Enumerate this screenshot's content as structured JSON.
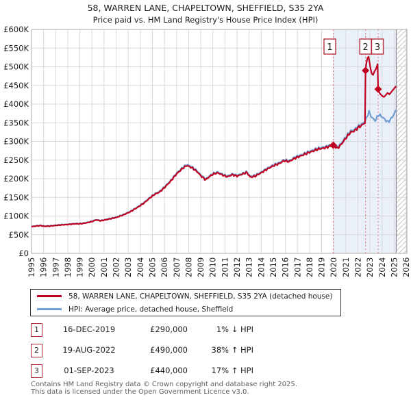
{
  "page": {
    "title_line1": "58, WARREN LANE, CHAPELTOWN, SHEFFIELD, S35 2YA",
    "title_line2": "Price paid vs. HM Land Registry's House Price Index (HPI)"
  },
  "chart_data": {
    "type": "line",
    "title": "58, WARREN LANE, CHAPELTOWN, SHEFFIELD, S35 2YA",
    "subtitle": "Price paid vs. HM Land Registry's House Price Index (HPI)",
    "x_min": 1995,
    "x_max": 2026.05,
    "y_min": 0,
    "y_max": 600,
    "grid": true,
    "x_tick_years": [
      1995,
      1996,
      1997,
      1998,
      1999,
      2000,
      2001,
      2002,
      2003,
      2004,
      2005,
      2006,
      2007,
      2008,
      2009,
      2010,
      2011,
      2012,
      2013,
      2014,
      2015,
      2016,
      2017,
      2018,
      2019,
      2020,
      2021,
      2022,
      2023,
      2024,
      2025,
      2026
    ],
    "y_tick_labels": [
      "£0",
      "£50K",
      "£100K",
      "£150K",
      "£200K",
      "£250K",
      "£300K",
      "£350K",
      "£400K",
      "£450K",
      "£500K",
      "£550K",
      "£600K"
    ],
    "y_tick_values": [
      0,
      50,
      100,
      150,
      200,
      250,
      300,
      350,
      400,
      450,
      500,
      550,
      600
    ],
    "colors": {
      "price_paid": "#c00020",
      "hpi": "#6d9dd1",
      "sale_dashed": "#e87272",
      "shade": "#eaf0fa",
      "grid": "#d8d8d8",
      "border": "#aaaaaa",
      "hatch": "#c4c4c4"
    },
    "shade_from_year": 2019.958,
    "data_end_year": 2025.17,
    "hatch_to_year": 2026.05,
    "hpi_series": {
      "name": "HPI: Average price, detached house, Sheffield",
      "unit": "GBP thousands",
      "anchors": [
        [
          1995.0,
          72
        ],
        [
          1995.4,
          74
        ],
        [
          1995.75,
          75
        ],
        [
          1996.1,
          73
        ],
        [
          1996.6,
          74
        ],
        [
          1997.0,
          75.5
        ],
        [
          1997.5,
          77
        ],
        [
          1998.0,
          78
        ],
        [
          1998.6,
          80
        ],
        [
          1999.1,
          80
        ],
        [
          1999.6,
          83
        ],
        [
          2000.0,
          86
        ],
        [
          2000.35,
          90.5
        ],
        [
          2000.7,
          88
        ],
        [
          2001.1,
          90.5
        ],
        [
          2001.5,
          93.5
        ],
        [
          2002.0,
          97
        ],
        [
          2002.6,
          104
        ],
        [
          2003.2,
          113
        ],
        [
          2003.8,
          125
        ],
        [
          2004.3,
          136
        ],
        [
          2004.8,
          150
        ],
        [
          2005.2,
          160
        ],
        [
          2005.6,
          166
        ],
        [
          2006.0,
          178
        ],
        [
          2006.5,
          195
        ],
        [
          2007.0,
          215
        ],
        [
          2007.5,
          230
        ],
        [
          2007.85,
          238
        ],
        [
          2008.3,
          231
        ],
        [
          2008.7,
          221
        ],
        [
          2009.0,
          210
        ],
        [
          2009.4,
          199
        ],
        [
          2009.7,
          207
        ],
        [
          2010.0,
          214
        ],
        [
          2010.4,
          218
        ],
        [
          2010.8,
          212
        ],
        [
          2011.2,
          207
        ],
        [
          2011.6,
          213
        ],
        [
          2012.0,
          209
        ],
        [
          2012.5,
          215
        ],
        [
          2012.8,
          219
        ],
        [
          2013.1,
          206
        ],
        [
          2013.5,
          209
        ],
        [
          2014.0,
          218
        ],
        [
          2014.5,
          228
        ],
        [
          2015.0,
          237
        ],
        [
          2015.5,
          243
        ],
        [
          2015.9,
          251
        ],
        [
          2016.3,
          248
        ],
        [
          2016.8,
          258
        ],
        [
          2017.3,
          264
        ],
        [
          2017.8,
          271
        ],
        [
          2018.3,
          277
        ],
        [
          2018.7,
          282
        ],
        [
          2019.2,
          285
        ],
        [
          2019.6,
          289
        ],
        [
          2019.96,
          293
        ],
        [
          2020.3,
          284
        ],
        [
          2020.6,
          294
        ],
        [
          2021.0,
          312
        ],
        [
          2021.4,
          328
        ],
        [
          2021.7,
          331
        ],
        [
          2022.0,
          340
        ],
        [
          2022.3,
          346
        ],
        [
          2022.63,
          355
        ],
        [
          2022.9,
          380
        ],
        [
          2023.15,
          364
        ],
        [
          2023.45,
          355
        ],
        [
          2023.7,
          372
        ],
        [
          2024.0,
          366
        ],
        [
          2024.25,
          358
        ],
        [
          2024.5,
          352
        ],
        [
          2024.75,
          361
        ],
        [
          2025.0,
          374
        ],
        [
          2025.17,
          385
        ]
      ]
    },
    "price_paid_series": {
      "name": "58, WARREN LANE, CHAPELTOWN, SHEFFIELD, S35 2YA (detached house)",
      "unit": "GBP thousands",
      "tracks_hpi_with_ratio_until": 2022.6,
      "ratio_to_hpi_before_jump": 0.99,
      "anchors_after_jump": [
        [
          2022.63,
          490
        ],
        [
          2022.7,
          510
        ],
        [
          2022.8,
          524
        ],
        [
          2022.88,
          527
        ],
        [
          2022.95,
          514
        ],
        [
          2023.05,
          494
        ],
        [
          2023.15,
          481
        ],
        [
          2023.25,
          478
        ],
        [
          2023.35,
          486
        ],
        [
          2023.45,
          492
        ],
        [
          2023.55,
          499
        ],
        [
          2023.63,
          507
        ],
        [
          2023.67,
          440
        ],
        [
          2023.75,
          432
        ],
        [
          2023.85,
          427
        ],
        [
          2024.0,
          422
        ],
        [
          2024.15,
          419
        ],
        [
          2024.3,
          424
        ],
        [
          2024.45,
          430
        ],
        [
          2024.6,
          426
        ],
        [
          2024.75,
          432
        ],
        [
          2024.9,
          438
        ],
        [
          2025.05,
          444
        ],
        [
          2025.17,
          448
        ]
      ]
    },
    "sales": [
      {
        "n": "1",
        "year": 2019.958,
        "price_k": 290
      },
      {
        "n": "2",
        "year": 2022.63,
        "price_k": 490
      },
      {
        "n": "3",
        "year": 2023.67,
        "price_k": 440
      }
    ],
    "legend_position": "bottom"
  },
  "legend": {
    "items": [
      {
        "label": "58, WARREN LANE, CHAPELTOWN, SHEFFIELD, S35 2YA (detached house)",
        "color": "#c00020"
      },
      {
        "label": "HPI: Average price, detached house, Sheffield",
        "color": "#6d9dd1"
      }
    ]
  },
  "table": {
    "rows": [
      {
        "num": "1",
        "date": "16-DEC-2019",
        "price": "£290,000",
        "pct": "1% ↓ HPI"
      },
      {
        "num": "2",
        "date": "19-AUG-2022",
        "price": "£490,000",
        "pct": "38% ↑ HPI"
      },
      {
        "num": "3",
        "date": "01-SEP-2023",
        "price": "£440,000",
        "pct": "17% ↑ HPI"
      }
    ]
  },
  "footer": {
    "line1": "Contains HM Land Registry data © Crown copyright and database right 2025.",
    "line2": "This data is licensed under the Open Government Licence v3.0."
  }
}
